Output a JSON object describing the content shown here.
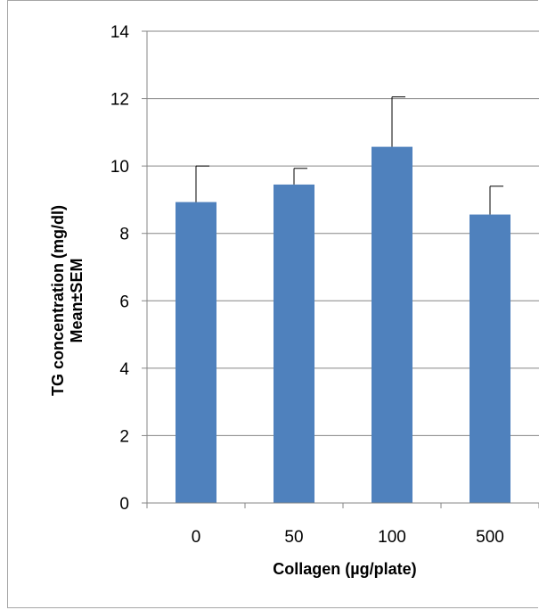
{
  "chart_data": {
    "type": "bar",
    "categories": [
      "0",
      "50",
      "100",
      "500"
    ],
    "values": [
      8.93,
      9.45,
      10.57,
      8.56
    ],
    "error_upper": [
      1.07,
      0.48,
      1.48,
      0.84
    ],
    "xlabel": "Collagen (µg/plate)",
    "ylabel": "TG concentration (mg/dl)",
    "ylabel_line2": "Mean±SEM",
    "ylim": [
      0,
      14
    ],
    "yticks": [
      0,
      2,
      4,
      6,
      8,
      10,
      12,
      14
    ],
    "grid": "horizontal",
    "legend": "none",
    "colors": {
      "bar": "#4f81bd",
      "grid": "#868686",
      "axis": "#868686",
      "error_bar": "#000000",
      "frame": "#a6a6a6"
    }
  }
}
